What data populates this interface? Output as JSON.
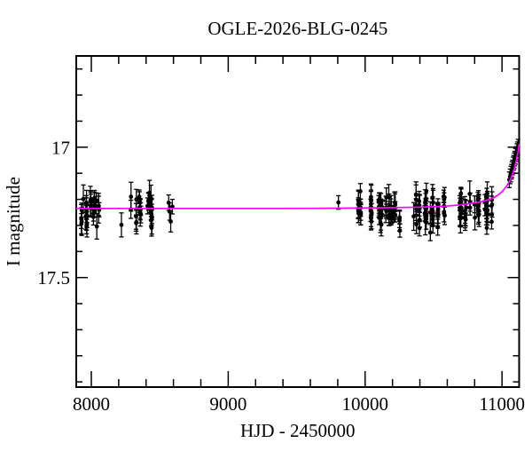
{
  "title": "OGLE-2026-BLG-0245",
  "chart_data": {
    "type": "scatter",
    "title": "OGLE-2026-BLG-0245",
    "xlabel": "HJD - 2450000",
    "ylabel": "I magnitude",
    "xlim": [
      7890,
      11125
    ],
    "ylim": [
      16.65,
      17.92
    ],
    "y_axis_note": "magnitude axis, brighter (smaller) values plotted upward",
    "x_major_ticks": [
      8000,
      9000,
      10000,
      11000
    ],
    "x_tick_labels": [
      "8000",
      "9000",
      "10000",
      "11000"
    ],
    "x_minor_step": 200,
    "y_major_ticks": [
      17,
      17.5
    ],
    "y_tick_labels": [
      "17",
      "17.5"
    ],
    "y_minor_step": 0.1,
    "grid": false,
    "legend": false,
    "baseline_mag": 17.235,
    "colors": {
      "data": "#000000",
      "model": "#ff00ff",
      "frame": "#000000",
      "background": "#ffffff"
    },
    "seed": 20,
    "clusters": [
      {
        "t_start": 7896,
        "t_end": 8062,
        "n": 34,
        "mag_mean": 17.246,
        "mag_sigma": 0.031
      },
      {
        "t_start": 8284,
        "t_end": 8450,
        "n": 30,
        "mag_mean": 17.243,
        "mag_sigma": 0.034
      },
      {
        "t_start": 9950,
        "t_end": 10255,
        "n": 58,
        "mag_mean": 17.244,
        "mag_sigma": 0.03
      },
      {
        "t_start": 10338,
        "t_end": 10620,
        "n": 52,
        "mag_mean": 17.243,
        "mag_sigma": 0.03
      },
      {
        "t_start": 10690,
        "t_end": 10960,
        "n": 52,
        "mag_mean": 17.24,
        "mag_sigma": 0.03
      }
    ],
    "points": [
      [
        8220,
        17.298,
        0.046
      ],
      [
        9805,
        17.212,
        0.026
      ],
      [
        8565,
        17.213,
        0.03
      ],
      [
        8572,
        17.247,
        0.033
      ],
      [
        8580,
        17.285,
        0.04
      ],
      [
        8592,
        17.228,
        0.028
      ],
      [
        11053,
        17.125,
        0.03
      ],
      [
        11059,
        17.112,
        0.028
      ],
      [
        11064,
        17.103,
        0.03
      ],
      [
        11069,
        17.094,
        0.028
      ],
      [
        11073,
        17.086,
        0.03
      ],
      [
        11077,
        17.078,
        0.028
      ],
      [
        11081,
        17.068,
        0.03
      ],
      [
        11085,
        17.06,
        0.028
      ],
      [
        11089,
        17.052,
        0.03
      ],
      [
        11093,
        17.044,
        0.028
      ],
      [
        11098,
        17.035,
        0.03
      ],
      [
        11103,
        17.026,
        0.028
      ],
      [
        11108,
        17.017,
        0.03
      ],
      [
        11113,
        17.008,
        0.028
      ],
      [
        11117,
        17.0,
        0.03
      ]
    ],
    "model_curve": [
      [
        7890,
        17.235
      ],
      [
        8800,
        17.235
      ],
      [
        9400,
        17.235
      ],
      [
        9800,
        17.234
      ],
      [
        10000,
        17.233
      ],
      [
        10200,
        17.232
      ],
      [
        10400,
        17.23
      ],
      [
        10570,
        17.227
      ],
      [
        10700,
        17.221
      ],
      [
        10830,
        17.211
      ],
      [
        10900,
        17.202
      ],
      [
        10945,
        17.192
      ],
      [
        10980,
        17.18
      ],
      [
        11005,
        17.168
      ],
      [
        11035,
        17.148
      ],
      [
        11060,
        17.125
      ],
      [
        11080,
        17.098
      ],
      [
        11092,
        17.077
      ],
      [
        11105,
        17.05
      ],
      [
        11117,
        17.016
      ],
      [
        11125,
        16.988
      ]
    ]
  }
}
